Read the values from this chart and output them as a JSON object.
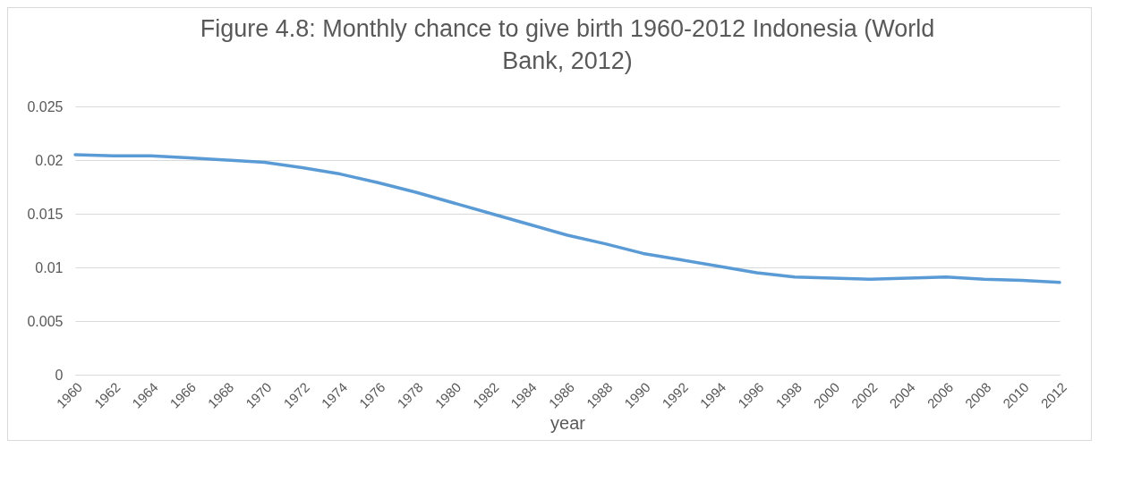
{
  "chart_data": {
    "type": "line",
    "title": "Figure 4.8: Monthly chance to give birth 1960-2012 Indonesia (World Bank, 2012)",
    "xlabel": "year",
    "x": [
      1960,
      1962,
      1964,
      1966,
      1968,
      1970,
      1972,
      1974,
      1976,
      1978,
      1980,
      1982,
      1984,
      1986,
      1988,
      1990,
      1992,
      1994,
      1996,
      1998,
      2000,
      2002,
      2004,
      2006,
      2008,
      2010,
      2012
    ],
    "series": [
      {
        "color": "#5b9bd5",
        "values": [
          0.0205,
          0.0204,
          0.0204,
          0.0202,
          0.02,
          0.0198,
          0.0193,
          0.0187,
          0.0179,
          0.017,
          0.016,
          0.015,
          0.014,
          0.013,
          0.0122,
          0.0113,
          0.0107,
          0.0101,
          0.0095,
          0.0091,
          0.009,
          0.0089,
          0.009,
          0.0091,
          0.0089,
          0.0088,
          0.0086
        ]
      }
    ],
    "xlim": [
      1960,
      2012
    ],
    "xticks": [
      1960,
      1962,
      1964,
      1966,
      1968,
      1970,
      1972,
      1974,
      1976,
      1978,
      1980,
      1982,
      1984,
      1986,
      1988,
      1990,
      1992,
      1994,
      1996,
      1998,
      2000,
      2002,
      2004,
      2006,
      2008,
      2010,
      2012
    ],
    "ylim": [
      0,
      0.025
    ],
    "yticks": [
      0,
      0.005,
      0.01,
      0.015,
      0.02,
      0.025
    ],
    "grid": "y",
    "line_style": "solid",
    "marker": "none"
  }
}
